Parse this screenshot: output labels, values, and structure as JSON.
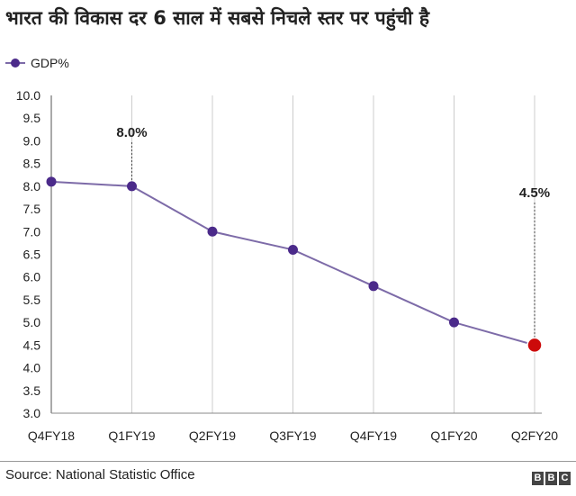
{
  "title": "भारत की विकास दर 6 साल में सबसे निचले स्तर पर पहुंची है",
  "source": "Source: National Statistic Office",
  "logo": {
    "letters": [
      "B",
      "B",
      "C"
    ]
  },
  "colors": {
    "line": "#7d6ba8",
    "marker": "#4b2a8a",
    "highlight": "#cc0a0a",
    "grid": "#cccccc"
  },
  "chart_data": {
    "type": "line",
    "title": "भारत की विकास दर 6 साल में सबसे निचले स्तर पर पहुंची है",
    "categories": [
      "Q4FY18",
      "Q1FY19",
      "Q2FY19",
      "Q3FY19",
      "Q4FY19",
      "Q1FY20",
      "Q2FY20"
    ],
    "series": [
      {
        "name": "GDP%",
        "values": [
          8.1,
          8.0,
          7.0,
          6.6,
          5.8,
          5.0,
          4.5
        ]
      }
    ],
    "ylim": [
      3.0,
      10.0
    ],
    "yticks": [
      "10.0",
      "9.5",
      "9.0",
      "8.5",
      "8.0",
      "7.5",
      "7.0",
      "6.5",
      "6.0",
      "5.5",
      "5.0",
      "4.5",
      "4.0",
      "3.5",
      "3.0"
    ],
    "grid": "vertical",
    "legend_position": "top-left",
    "annotations": [
      {
        "category": "Q1FY19",
        "label": "8.0%"
      },
      {
        "category": "Q2FY20",
        "label": "4.5%"
      }
    ],
    "highlight_category": "Q2FY20"
  }
}
